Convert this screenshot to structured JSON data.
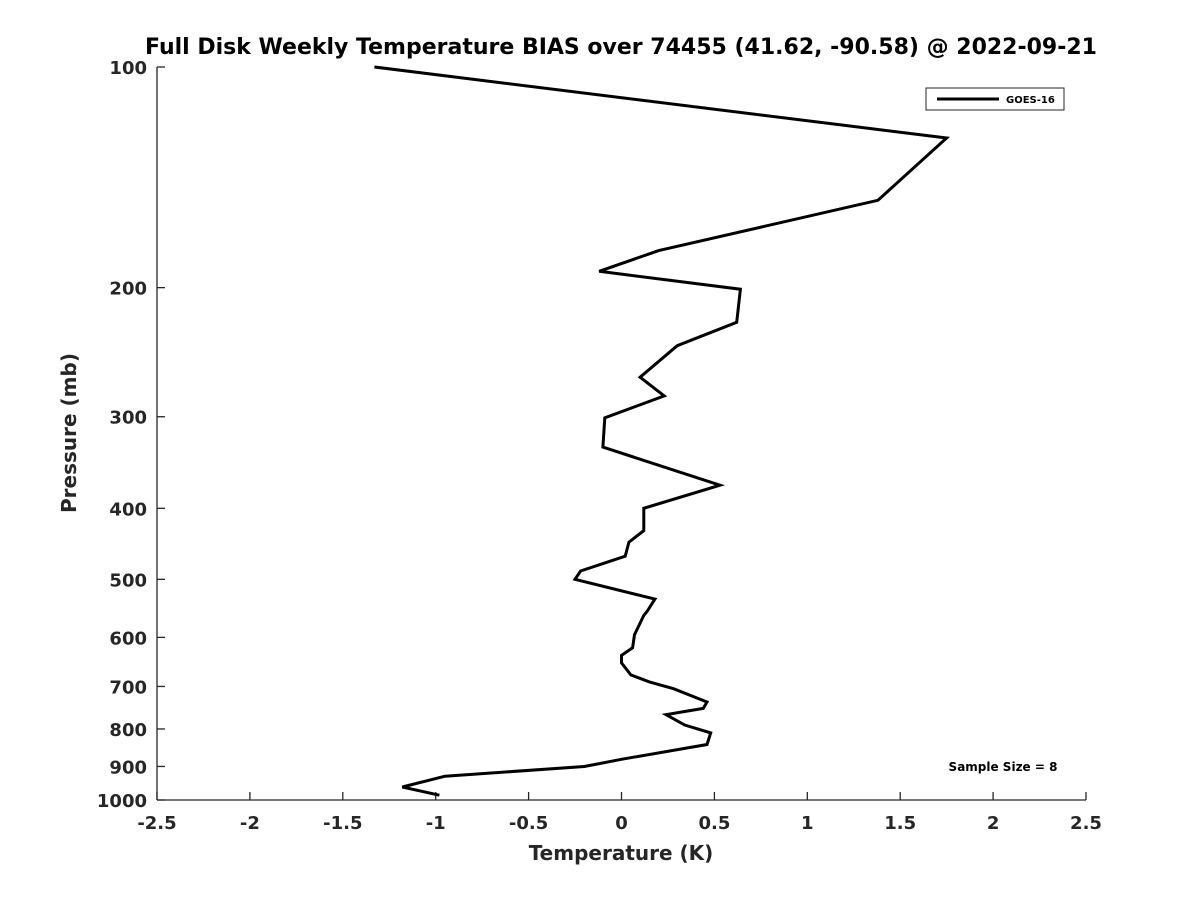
{
  "chart_data": {
    "type": "line",
    "title": "Full Disk Weekly Temperature BIAS over 74455 (41.62, -90.58) @ 2022-09-21",
    "xlabel": "Temperature (K)",
    "ylabel": "Pressure (mb)",
    "xlim": [
      -2.5,
      2.5
    ],
    "ylim": [
      100,
      1000
    ],
    "y_scale": "log",
    "y_reversed": true,
    "grid": false,
    "x_ticks": [
      -2.5,
      -2,
      -1.5,
      -1,
      -0.5,
      0,
      0.5,
      1,
      1.5,
      2,
      2.5
    ],
    "x_tick_labels": [
      "-2.5",
      "-2",
      "-1.5",
      "-1",
      "-0.5",
      "0",
      "0.5",
      "1",
      "1.5",
      "2",
      "2.5"
    ],
    "y_ticks": [
      100,
      200,
      300,
      400,
      500,
      600,
      700,
      800,
      900,
      1000
    ],
    "y_tick_labels": [
      "100",
      "200",
      "300",
      "400",
      "500",
      "600",
      "700",
      "800",
      "900",
      "1000"
    ],
    "legend": {
      "position": "top-right",
      "entries": [
        "GOES-16"
      ]
    },
    "annotation": "Sample Size = 8",
    "series": [
      {
        "name": "GOES-16",
        "color": "#000000",
        "points": [
          [
            -1.33,
            100
          ],
          [
            1.75,
            125
          ],
          [
            1.38,
            152
          ],
          [
            0.2,
            178
          ],
          [
            -0.12,
            190
          ],
          [
            0.64,
            201
          ],
          [
            0.62,
            223
          ],
          [
            0.3,
            240
          ],
          [
            0.1,
            265
          ],
          [
            0.23,
            281
          ],
          [
            -0.09,
            301
          ],
          [
            -0.1,
            330
          ],
          [
            0.53,
            372
          ],
          [
            0.12,
            400
          ],
          [
            0.12,
            429
          ],
          [
            0.04,
            445
          ],
          [
            0.02,
            465
          ],
          [
            -0.22,
            487
          ],
          [
            -0.25,
            500
          ],
          [
            0.18,
            532
          ],
          [
            0.14,
            552
          ],
          [
            0.12,
            560
          ],
          [
            0.07,
            595
          ],
          [
            0.06,
            620
          ],
          [
            0.0,
            635
          ],
          [
            0.0,
            650
          ],
          [
            0.03,
            665
          ],
          [
            0.05,
            675
          ],
          [
            0.15,
            690
          ],
          [
            0.28,
            705
          ],
          [
            0.46,
            735
          ],
          [
            0.44,
            750
          ],
          [
            0.24,
            765
          ],
          [
            0.34,
            790
          ],
          [
            0.48,
            810
          ],
          [
            0.46,
            840
          ],
          [
            0.0,
            880
          ],
          [
            -0.2,
            900
          ],
          [
            -0.95,
            928
          ],
          [
            -1.18,
            960
          ],
          [
            -0.98,
            985
          ]
        ]
      }
    ]
  }
}
